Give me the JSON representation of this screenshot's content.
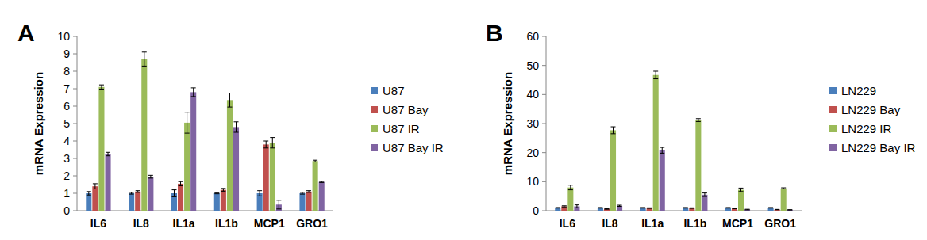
{
  "chart_data": [
    {
      "type": "bar",
      "title": "A",
      "y_label": "mRNA Expression",
      "categories": [
        "IL6",
        "IL8",
        "IL1a",
        "IL1b",
        "MCP1",
        "GRO1"
      ],
      "ylim": [
        0,
        10
      ],
      "yticks": [
        0,
        1,
        2,
        3,
        4,
        5,
        6,
        7,
        8,
        9,
        10
      ],
      "grid": false,
      "legend": "right",
      "series": [
        {
          "name": "U87",
          "color": "#4a7ebb",
          "values": [
            1.0,
            1.0,
            1.0,
            1.0,
            1.0,
            1.0
          ],
          "errors": [
            0.1,
            0.05,
            0.2,
            0.03,
            0.15,
            0.05
          ]
        },
        {
          "name": "U87 Bay",
          "color": "#c0504d",
          "values": [
            1.4,
            1.1,
            1.55,
            1.2,
            3.8,
            1.1
          ],
          "errors": [
            0.15,
            0.05,
            0.12,
            0.08,
            0.2,
            0.05
          ]
        },
        {
          "name": "U87 IR",
          "color": "#9bbb59",
          "values": [
            7.1,
            8.7,
            5.05,
            6.35,
            3.9,
            2.85
          ],
          "errors": [
            0.12,
            0.4,
            0.6,
            0.4,
            0.3,
            0.05
          ]
        },
        {
          "name": "U87 Bay IR",
          "color": "#8064a2",
          "values": [
            3.25,
            1.95,
            6.8,
            4.8,
            0.35,
            1.65
          ],
          "errors": [
            0.1,
            0.08,
            0.25,
            0.3,
            0.25,
            0.03
          ]
        }
      ]
    },
    {
      "type": "bar",
      "title": "B",
      "y_label": "mRNA Expression",
      "categories": [
        "IL6",
        "IL8",
        "IL1a",
        "IL1b",
        "MCP1",
        "GRO1"
      ],
      "ylim": [
        0,
        60
      ],
      "yticks": [
        0,
        10,
        20,
        30,
        40,
        50,
        60
      ],
      "grid": false,
      "legend": "right",
      "series": [
        {
          "name": "LN229",
          "color": "#4a7ebb",
          "values": [
            1.0,
            1.0,
            1.0,
            1.0,
            1.0,
            1.0
          ],
          "errors": [
            0.1,
            0.1,
            0.1,
            0.1,
            0.1,
            0.1
          ]
        },
        {
          "name": "LN229 Bay",
          "color": "#c0504d",
          "values": [
            1.5,
            0.6,
            0.9,
            0.9,
            0.8,
            0.4
          ],
          "errors": [
            0.2,
            0.1,
            0.1,
            0.1,
            0.1,
            0.05
          ]
        },
        {
          "name": "LN229 IR",
          "color": "#9bbb59",
          "values": [
            8.0,
            27.7,
            46.7,
            31.2,
            7.2,
            7.7
          ],
          "errors": [
            0.8,
            1.2,
            1.3,
            0.5,
            0.6,
            0.2
          ]
        },
        {
          "name": "LN229 Bay IR",
          "color": "#8064a2",
          "values": [
            1.5,
            1.7,
            20.8,
            5.5,
            0.4,
            0.3
          ],
          "errors": [
            0.5,
            0.2,
            1.0,
            0.6,
            0.1,
            0.05
          ]
        }
      ]
    }
  ]
}
